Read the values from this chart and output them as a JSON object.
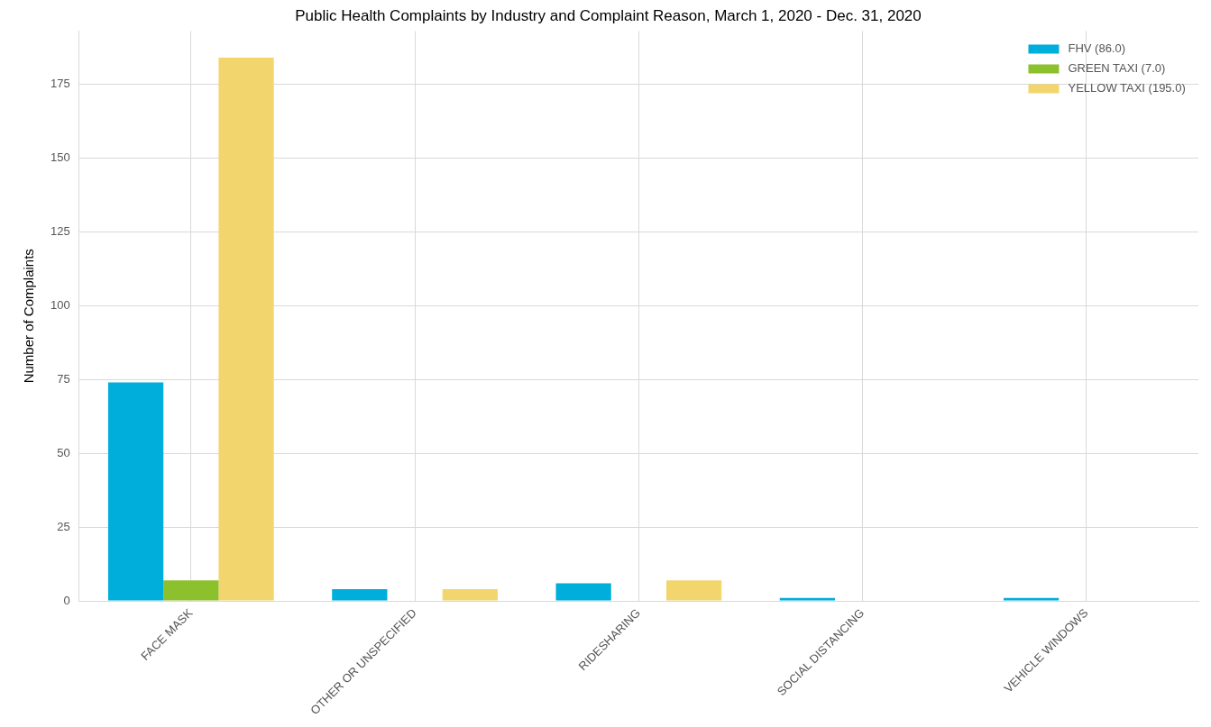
{
  "chart_data": {
    "type": "bar",
    "title": "Public Health Complaints by Industry and Complaint Reason, March 1, 2020 - Dec. 31, 2020",
    "ylabel": "Number of Complaints",
    "categories": [
      "FACE MASK",
      "OTHER OR UNSPECIFIED",
      "RIDESHARING",
      "SOCIAL DISTANCING",
      "VEHICLE WINDOWS"
    ],
    "series": [
      {
        "name": "FHV (86.0)",
        "color": "#00aedb",
        "values": [
          74,
          4,
          6,
          1,
          1
        ]
      },
      {
        "name": "GREEN TAXI (7.0)",
        "color": "#8cc02c",
        "values": [
          7,
          0,
          0,
          0,
          0
        ]
      },
      {
        "name": "YELLOW TAXI (195.0)",
        "color": "#f3d56e",
        "values": [
          184,
          4,
          7,
          0,
          0
        ]
      }
    ],
    "ylim": [
      0,
      193
    ],
    "yticks": [
      0,
      25,
      50,
      75,
      100,
      125,
      150,
      175
    ],
    "grid": true,
    "legend": "top right"
  }
}
